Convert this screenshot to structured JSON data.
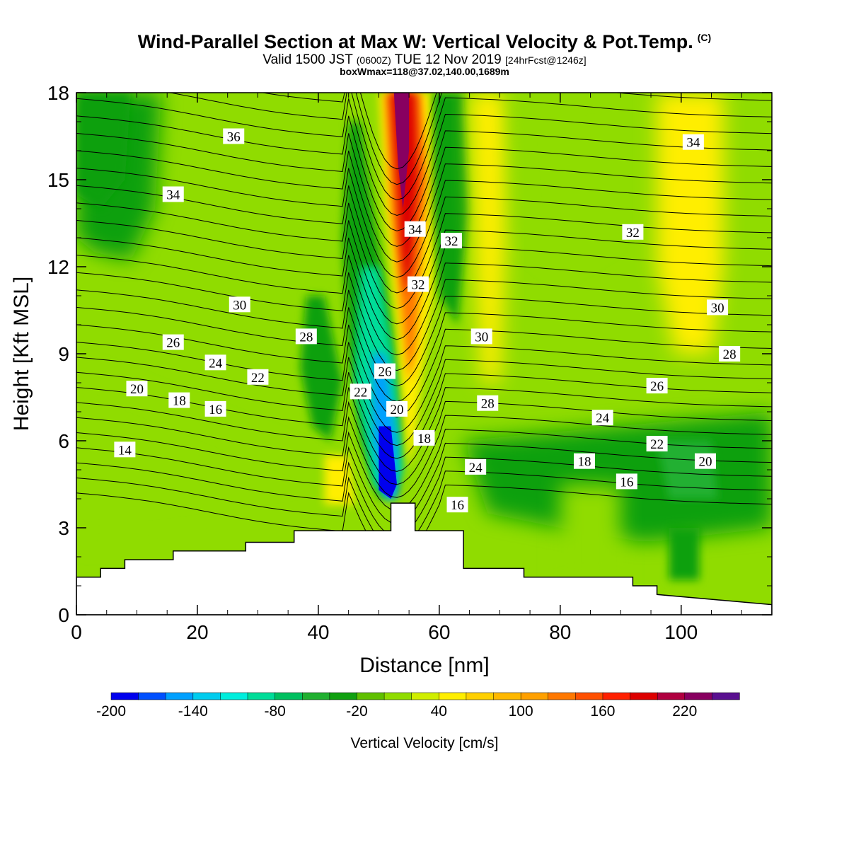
{
  "title": {
    "main": "Wind-Parallel Section at Max W: Vertical Velocity & Pot.Temp.",
    "copyright": "(C)",
    "valid_prefix": "Valid 1500 JST",
    "valid_z": "(0600Z)",
    "valid_date": "TUE 12 Nov 2019",
    "valid_fcst": "[24hrFcst@1246z]",
    "box": "boxWmax=118@37.02,140.00,1689m"
  },
  "chart_data": {
    "type": "heatmap",
    "title": "Wind-Parallel Section at Max W: Vertical Velocity & Pot.Temp.",
    "xlabel": "Distance [nm]",
    "ylabel": "Height [Kft MSL]",
    "xlim": [
      0,
      115
    ],
    "ylim": [
      0,
      18
    ],
    "x_ticks": [
      0,
      20,
      40,
      60,
      80,
      100
    ],
    "y_ticks": [
      0,
      3,
      6,
      9,
      12,
      15,
      18
    ],
    "grid": false,
    "colorbar": {
      "title": "Vertical Velocity [cm/s]",
      "position": "bottom",
      "levels": [
        -200,
        -180,
        -160,
        -140,
        -120,
        -100,
        -80,
        -60,
        -40,
        -20,
        0,
        20,
        40,
        60,
        80,
        100,
        120,
        140,
        160,
        180,
        200,
        220,
        240
      ],
      "labels": [
        "-200",
        "-140",
        "-80",
        "-20",
        "40",
        "100",
        "160",
        "220"
      ],
      "label_values": [
        -200,
        -140,
        -80,
        -20,
        40,
        100,
        160,
        220
      ],
      "colors": [
        "#0000ee",
        "#0050ff",
        "#00a0ff",
        "#00ccee",
        "#00eedd",
        "#00dd99",
        "#00c060",
        "#20b030",
        "#10a010",
        "#60c000",
        "#90dc00",
        "#d0ee00",
        "#ffee00",
        "#ffd000",
        "#ffb800",
        "#ffa000",
        "#ff7800",
        "#ff5000",
        "#ff2000",
        "#dd0000",
        "#b00040",
        "#880060",
        "#5a1090"
      ]
    },
    "vertical_velocity_features": [
      {
        "name": "updraft_core",
        "x": 53.5,
        "y_range": [
          9,
          18
        ],
        "w_max": 240
      },
      {
        "name": "downdraft_core",
        "x": 50,
        "y_range": [
          4,
          10
        ],
        "w_min": -200
      },
      {
        "name": "upper_updraft_band",
        "x": 68,
        "y_range": [
          8,
          18
        ],
        "w_max": 40
      },
      {
        "name": "upper_updraft_band",
        "x": 103,
        "y_range": [
          8,
          18
        ],
        "w_max": 40
      },
      {
        "name": "lower_downdraft_patch",
        "x": 100,
        "y_range": [
          1,
          3
        ],
        "w_min": -40
      },
      {
        "name": "lower_updraft_patch",
        "x": 84,
        "y_range": [
          1,
          4
        ],
        "w_max": 40
      }
    ],
    "terrain": {
      "x": [
        0,
        4,
        4,
        8,
        8,
        16,
        16,
        28,
        28,
        36,
        36,
        52,
        52,
        56,
        56,
        64,
        64,
        74,
        74,
        92,
        92,
        96,
        96,
        115
      ],
      "height": [
        1.3,
        1.3,
        1.6,
        1.6,
        1.9,
        1.9,
        2.2,
        2.2,
        2.5,
        2.5,
        2.9,
        2.9,
        3.85,
        3.85,
        2.9,
        2.9,
        1.6,
        1.6,
        1.3,
        1.3,
        1.0,
        1.0,
        0.7,
        0.35
      ]
    },
    "potential_temperature": {
      "units": "C",
      "contour_labels": [
        {
          "value": "36",
          "x": 26,
          "y": 16.5
        },
        {
          "value": "34",
          "x": 16,
          "y": 14.5
        },
        {
          "value": "34",
          "x": 56,
          "y": 13.3
        },
        {
          "value": "34",
          "x": 102,
          "y": 16.3
        },
        {
          "value": "32",
          "x": 62,
          "y": 12.9
        },
        {
          "value": "32",
          "x": 92,
          "y": 13.2
        },
        {
          "value": "32",
          "x": 56.5,
          "y": 11.4
        },
        {
          "value": "30",
          "x": 27,
          "y": 10.7
        },
        {
          "value": "30",
          "x": 67,
          "y": 9.6
        },
        {
          "value": "30",
          "x": 106,
          "y": 10.6
        },
        {
          "value": "28",
          "x": 38,
          "y": 9.6
        },
        {
          "value": "28",
          "x": 108,
          "y": 9.0
        },
        {
          "value": "28",
          "x": 68,
          "y": 7.3
        },
        {
          "value": "26",
          "x": 16,
          "y": 9.4
        },
        {
          "value": "26",
          "x": 51,
          "y": 8.4
        },
        {
          "value": "26",
          "x": 96,
          "y": 7.9
        },
        {
          "value": "24",
          "x": 23,
          "y": 8.7
        },
        {
          "value": "24",
          "x": 87,
          "y": 6.8
        },
        {
          "value": "24",
          "x": 66,
          "y": 5.1
        },
        {
          "value": "22",
          "x": 30,
          "y": 8.2
        },
        {
          "value": "22",
          "x": 47,
          "y": 7.7
        },
        {
          "value": "22",
          "x": 96,
          "y": 5.9
        },
        {
          "value": "20",
          "x": 10,
          "y": 7.8
        },
        {
          "value": "20",
          "x": 53,
          "y": 7.1
        },
        {
          "value": "20",
          "x": 104,
          "y": 5.3
        },
        {
          "value": "18",
          "x": 17,
          "y": 7.4
        },
        {
          "value": "18",
          "x": 57.5,
          "y": 6.1
        },
        {
          "value": "18",
          "x": 84,
          "y": 5.3
        },
        {
          "value": "16",
          "x": 23,
          "y": 7.1
        },
        {
          "value": "16",
          "x": 63,
          "y": 3.8
        },
        {
          "value": "16",
          "x": 91,
          "y": 4.6
        },
        {
          "value": "14",
          "x": 8,
          "y": 5.7
        }
      ]
    }
  }
}
